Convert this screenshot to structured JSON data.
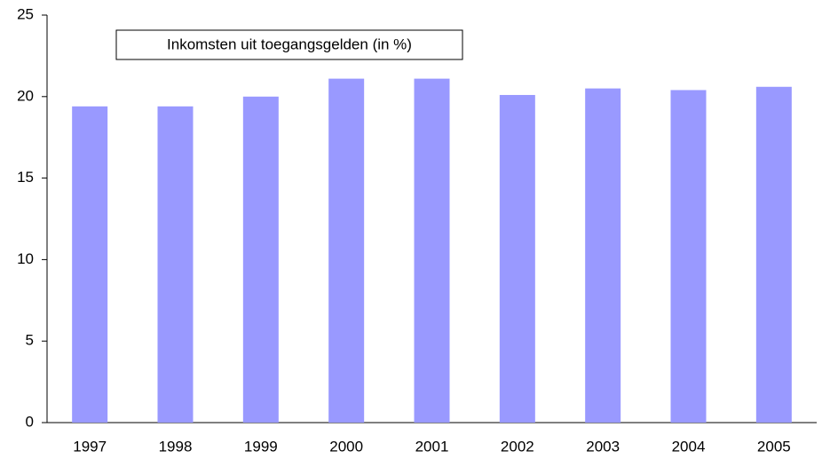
{
  "chart_data": {
    "type": "bar",
    "title": "Inkomsten uit toegangsgelden (in %)",
    "categories": [
      "1997",
      "1998",
      "1999",
      "2000",
      "2001",
      "2002",
      "2003",
      "2004",
      "2005"
    ],
    "values": [
      19.4,
      19.4,
      20.0,
      21.1,
      21.1,
      20.1,
      20.5,
      20.4,
      20.6
    ],
    "color": "#9999ff",
    "ylim": [
      0,
      25
    ],
    "yticks": [
      0,
      5,
      10,
      15,
      20,
      25
    ],
    "grid": false
  }
}
